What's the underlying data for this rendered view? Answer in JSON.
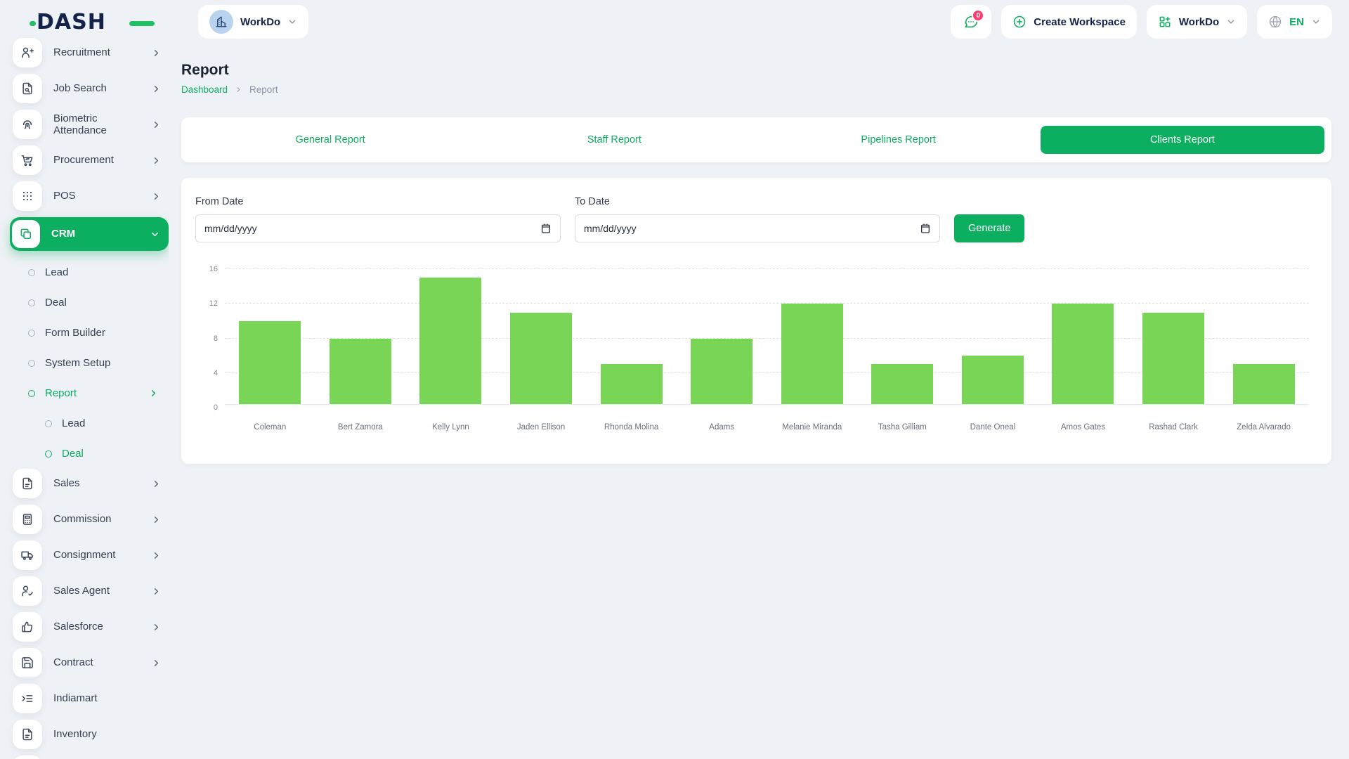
{
  "header": {
    "logo_text": "DASH",
    "workspace_name": "WorkDo",
    "messages_badge": "0",
    "create_workspace_label": "Create Workspace",
    "app_switcher_label": "WorkDo",
    "language": "EN"
  },
  "page": {
    "title": "Report",
    "breadcrumb_link": "Dashboard",
    "breadcrumb_current": "Report"
  },
  "tabs": [
    {
      "label": "General Report",
      "active": false
    },
    {
      "label": "Staff Report",
      "active": false
    },
    {
      "label": "Pipelines Report",
      "active": false
    },
    {
      "label": "Clients Report",
      "active": true
    }
  ],
  "form": {
    "from_label": "From Date",
    "to_label": "To Date",
    "date_placeholder": "mm/dd/yyyy",
    "generate_label": "Generate"
  },
  "sidebar": {
    "items": [
      {
        "label": "Recruitment",
        "icon": "user-plus-icon",
        "chevron": true
      },
      {
        "label": "Job Search",
        "icon": "file-search-icon",
        "chevron": true
      },
      {
        "label": "Biometric Attendance",
        "icon": "fingerprint-icon",
        "chevron": true
      },
      {
        "label": "Procurement",
        "icon": "cart-icon",
        "chevron": true
      },
      {
        "label": "POS",
        "icon": "grid-dots-icon",
        "chevron": true
      },
      {
        "label": "CRM",
        "icon": "frames-icon",
        "chevron": true,
        "active": true,
        "expanded": true,
        "children": [
          {
            "label": "Lead"
          },
          {
            "label": "Deal"
          },
          {
            "label": "Form Builder"
          },
          {
            "label": "System Setup"
          },
          {
            "label": "Report",
            "active": true,
            "chevron": true,
            "children": [
              {
                "label": "Lead"
              },
              {
                "label": "Deal",
                "active": true
              }
            ]
          }
        ]
      },
      {
        "label": "Sales",
        "icon": "file-icon",
        "chevron": true
      },
      {
        "label": "Commission",
        "icon": "calculator-icon",
        "chevron": true
      },
      {
        "label": "Consignment",
        "icon": "truck-icon",
        "chevron": true
      },
      {
        "label": "Sales Agent",
        "icon": "user-check-icon",
        "chevron": true
      },
      {
        "label": "Salesforce",
        "icon": "thumbs-up-icon",
        "chevron": true
      },
      {
        "label": "Contract",
        "icon": "save-icon",
        "chevron": true
      },
      {
        "label": "Indiamart",
        "icon": "list-arrow-icon",
        "chevron": false
      },
      {
        "label": "Inventory",
        "icon": "file-icon",
        "chevron": false
      }
    ]
  },
  "chart_data": {
    "type": "bar",
    "categories": [
      "Coleman",
      "Bert Zamora",
      "Kelly Lynn",
      "Jaden Ellison",
      "Rhonda Molina",
      "Adams",
      "Melanie Miranda",
      "Tasha Gilliam",
      "Dante Oneal",
      "Amos Gates",
      "Rashad Clark",
      "Zelda Alvarado"
    ],
    "values": [
      10,
      8,
      15,
      11,
      5,
      8,
      12,
      5,
      6,
      12,
      11,
      5
    ],
    "title": "",
    "xlabel": "",
    "ylabel": "",
    "ylim": [
      0,
      16
    ],
    "yticks": [
      0,
      4,
      8,
      12,
      16
    ],
    "grid": "dashed-horizontal",
    "legend": "none",
    "bar_color": "#78d556"
  },
  "colors": {
    "primary_green": "#0caf60",
    "bar_green": "#78d556",
    "badge_pink": "#ff3b72",
    "logo_navy": "#14224a",
    "page_bg": "#eef1f5"
  }
}
